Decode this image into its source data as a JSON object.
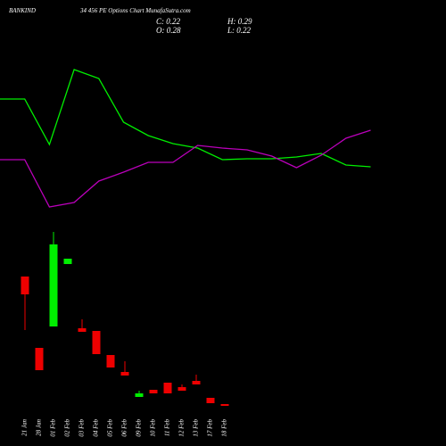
{
  "chart_data": [
    {
      "type": "line",
      "title": "BANKIND",
      "subtitle": "34 456 PE Options Chart MunafaSutra.com",
      "annotations": [
        "C: 0.22",
        "H: 0.29",
        "O: 0.28",
        "L: 0.22"
      ],
      "ylim": [
        0,
        20
      ],
      "series": [
        {
          "color": "#00ee00",
          "values": [
            13.9,
            13.9,
            8.8,
            17.2,
            16.2,
            11.3,
            9.8,
            8.9,
            8.4,
            7.1,
            7.2,
            7.2,
            7.4,
            7.8,
            6.5,
            6.3
          ]
        },
        {
          "color": "#bb00bb",
          "values": [
            7.1,
            7.1,
            1.8,
            2.3,
            4.7,
            5.7,
            6.8,
            6.8,
            8.7,
            8.4,
            8.2,
            7.5,
            6.2,
            7.6,
            9.5,
            10.4
          ]
        }
      ]
    },
    {
      "type": "candlestick",
      "ylim": [
        0,
        10
      ],
      "up_color": "#00ee00",
      "down_color": "#ee0000",
      "categories": [
        "21 Jan",
        "28 Jan",
        "01 Feb",
        "02 Feb",
        "03 Feb",
        "04 Feb",
        "05 Feb",
        "06 Feb",
        "09 Feb",
        "10 Feb",
        "11 Feb",
        "12 Feb",
        "13 Feb",
        "17 Feb",
        "18 Feb"
      ],
      "open": [
        7.5,
        3.5,
        4.7,
        8.2,
        4.6,
        4.45,
        3.1,
        2.15,
        0.75,
        1.15,
        1.55,
        1.3,
        1.65,
        0.7,
        0.35
      ],
      "high": [
        7.5,
        3.5,
        10,
        8.5,
        5.1,
        4.45,
        3.1,
        2.75,
        1.1,
        1.15,
        1.55,
        1.45,
        2.0,
        0.7,
        0.35
      ],
      "low": [
        4.5,
        2.25,
        4.7,
        8.2,
        4.4,
        3.15,
        2.4,
        1.95,
        0.75,
        0.95,
        0.95,
        1.1,
        1.45,
        0.4,
        0.25
      ],
      "close": [
        6.5,
        2.25,
        9.3,
        8.5,
        4.4,
        3.15,
        2.4,
        1.95,
        0.95,
        0.95,
        0.95,
        1.1,
        1.45,
        0.4,
        0.25
      ]
    }
  ]
}
